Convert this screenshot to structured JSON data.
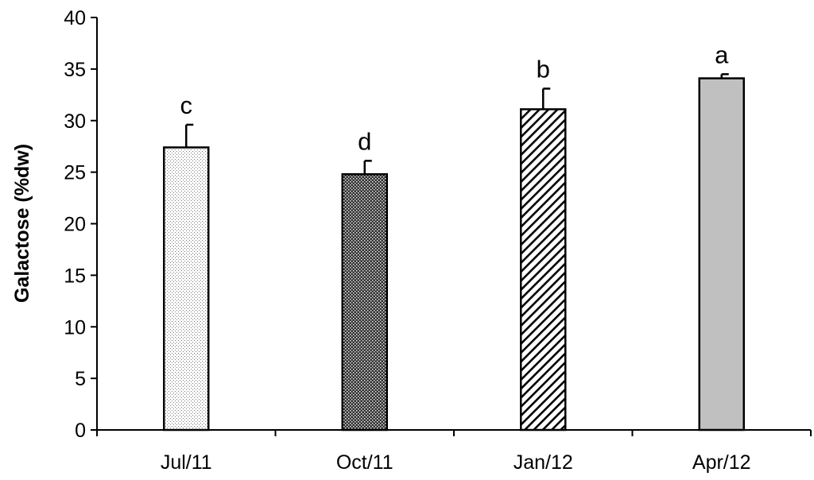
{
  "chart_data": {
    "type": "bar",
    "title": "",
    "xlabel": "",
    "ylabel": "Galactose (%dw)",
    "ylim": [
      0,
      40
    ],
    "yticks": [
      0,
      5,
      10,
      15,
      20,
      25,
      30,
      35,
      40
    ],
    "categories": [
      "Jul/11",
      "Oct/11",
      "Jan/12",
      "Apr/12"
    ],
    "values": [
      27.4,
      24.8,
      31.1,
      34.1
    ],
    "errors": [
      2.2,
      1.3,
      2.0,
      0.4
    ],
    "significance_letters": [
      "c",
      "d",
      "b",
      "a"
    ],
    "bar_fills": [
      "light-dotted",
      "dense-crosshatch",
      "diagonal-hatch",
      "solid-gray"
    ],
    "colors": {
      "axis": "#000000",
      "bar_stroke": "#000000",
      "solid_fill": "#c0c0c0"
    },
    "grid": false,
    "legend": "none"
  }
}
